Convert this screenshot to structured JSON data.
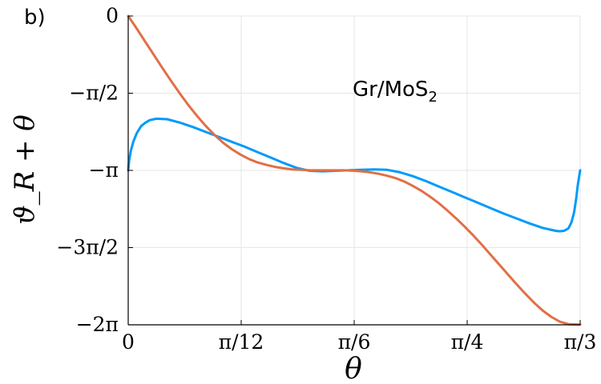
{
  "panel_label": "b)",
  "chart_data": {
    "type": "line",
    "xlabel": "θ",
    "ylabel": "ϑ_R + θ",
    "xlim": [
      0,
      1.0472
    ],
    "ylim": [
      -6.2832,
      0
    ],
    "grid": true,
    "x_ticks": [
      {
        "value": 0,
        "label": "0"
      },
      {
        "value": 0.2618,
        "label": "π/12"
      },
      {
        "value": 0.5236,
        "label": "π/6"
      },
      {
        "value": 0.7854,
        "label": "π/4"
      },
      {
        "value": 1.0472,
        "label": "π/3"
      }
    ],
    "y_ticks": [
      {
        "value": 0,
        "label": "0"
      },
      {
        "value": -1.5708,
        "label": "−π/2"
      },
      {
        "value": -3.1416,
        "label": "−π"
      },
      {
        "value": -4.7124,
        "label": "−3π/2"
      },
      {
        "value": -6.2832,
        "label": "−2π"
      }
    ],
    "annotation": {
      "text": "Gr/MoS",
      "sub": "2"
    },
    "series": [
      {
        "color": "#009AFA",
        "x": [
          0,
          0.002,
          0.006,
          0.012,
          0.02,
          0.03,
          0.04,
          0.05,
          0.065,
          0.09,
          0.12,
          0.15,
          0.18,
          0.21,
          0.24,
          0.27,
          0.3,
          0.33,
          0.36,
          0.39,
          0.42,
          0.45,
          0.48,
          0.51,
          0.54,
          0.57,
          0.6,
          0.63,
          0.66,
          0.69,
          0.72,
          0.75,
          0.78,
          0.81,
          0.84,
          0.87,
          0.9,
          0.93,
          0.96,
          0.99,
          1.0,
          1.01,
          1.02,
          1.027,
          1.033,
          1.038,
          1.042,
          1.0472
        ],
        "y": [
          -3.14,
          -2.95,
          -2.75,
          -2.55,
          -2.38,
          -2.24,
          -2.17,
          -2.12,
          -2.09,
          -2.1,
          -2.17,
          -2.26,
          -2.36,
          -2.46,
          -2.56,
          -2.66,
          -2.77,
          -2.88,
          -2.99,
          -3.09,
          -3.15,
          -3.16,
          -3.15,
          -3.14,
          -3.13,
          -3.12,
          -3.13,
          -3.18,
          -3.26,
          -3.36,
          -3.47,
          -3.58,
          -3.69,
          -3.8,
          -3.91,
          -4.02,
          -4.12,
          -4.22,
          -4.31,
          -4.37,
          -4.38,
          -4.37,
          -4.32,
          -4.2,
          -4.0,
          -3.72,
          -3.42,
          -3.14
        ]
      },
      {
        "color": "#E26F46",
        "x": [
          0,
          0.02,
          0.04,
          0.06,
          0.08,
          0.1,
          0.12,
          0.14,
          0.16,
          0.18,
          0.2,
          0.22,
          0.24,
          0.26,
          0.28,
          0.3,
          0.32,
          0.34,
          0.36,
          0.38,
          0.4,
          0.42,
          0.44,
          0.46,
          0.48,
          0.5,
          0.5236,
          0.54,
          0.56,
          0.58,
          0.6,
          0.62,
          0.64,
          0.66,
          0.68,
          0.7,
          0.72,
          0.74,
          0.76,
          0.78,
          0.8,
          0.82,
          0.84,
          0.86,
          0.88,
          0.9,
          0.92,
          0.94,
          0.96,
          0.98,
          1.0,
          1.02,
          1.0472
        ],
        "y": [
          0,
          -0.26,
          -0.53,
          -0.8,
          -1.07,
          -1.33,
          -1.58,
          -1.82,
          -2.04,
          -2.24,
          -2.42,
          -2.58,
          -2.71,
          -2.82,
          -2.91,
          -2.98,
          -3.03,
          -3.07,
          -3.1,
          -3.12,
          -3.13,
          -3.14,
          -3.14,
          -3.14,
          -3.14,
          -3.14,
          -3.15,
          -3.16,
          -3.18,
          -3.21,
          -3.25,
          -3.3,
          -3.37,
          -3.46,
          -3.56,
          -3.68,
          -3.81,
          -3.96,
          -4.12,
          -4.29,
          -4.47,
          -4.66,
          -4.86,
          -5.06,
          -5.26,
          -5.46,
          -5.65,
          -5.83,
          -5.99,
          -6.12,
          -6.22,
          -6.27,
          -6.28
        ]
      }
    ]
  }
}
